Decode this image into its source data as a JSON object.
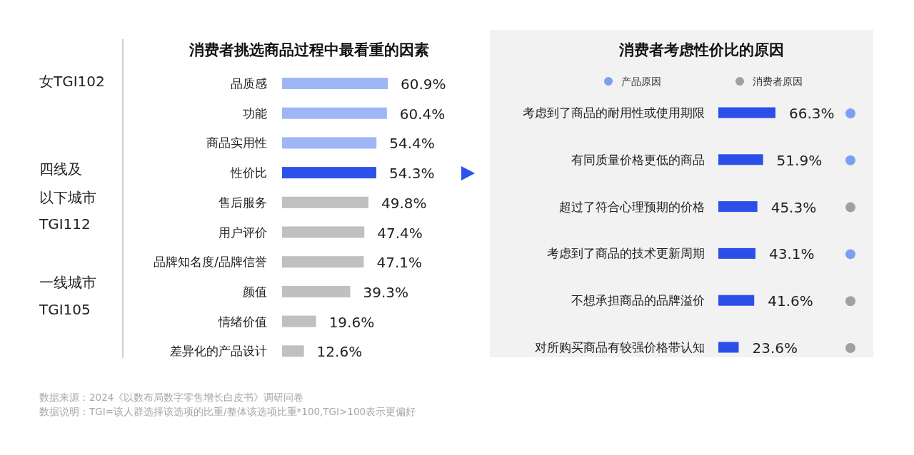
{
  "chart_data": [
    {
      "type": "bar",
      "orientation": "horizontal",
      "title": "消费者挑选商品过程中最看重的因素",
      "categories": [
        "品质感",
        "功能",
        "商品实用性",
        "性价比",
        "售后服务",
        "用户评价",
        "品牌知名度/品牌信誉",
        "颜值",
        "情绪价值",
        "差异化的产品设计"
      ],
      "values": [
        60.9,
        60.4,
        54.4,
        54.3,
        49.8,
        47.4,
        47.1,
        39.3,
        19.6,
        12.6
      ],
      "value_labels": [
        "60.9%",
        "60.4%",
        "54.4%",
        "54.3%",
        "49.8%",
        "47.4%",
        "47.1%",
        "39.3%",
        "19.6%",
        "12.6%"
      ],
      "colors": [
        "#9fb6f6",
        "#9fb6f6",
        "#9fb6f6",
        "#2b52ea",
        "#c0c0c0",
        "#c0c0c0",
        "#c0c0c0",
        "#c0c0c0",
        "#c0c0c0",
        "#c0c0c0"
      ],
      "annotations": [
        "女TGI102",
        "四线及",
        "以下城市",
        "TGI112",
        "一线城市",
        "TGI105",
        "数据来源：2024《以数布局数字零售增长白皮书》调研问卷",
        "数据说明：TGI=该人群选择该选项的比重/整体该选项比重*100,TGI>100表示更偏好"
      ]
    },
    {
      "type": "bar",
      "orientation": "horizontal",
      "title": "消费者考虑性价比的原因",
      "color": "#2b4fe8",
      "categories": [
        "考虑到了商品的耐用性或使用期限",
        "有同质量价格更低的商品",
        "超过了符合心理预期的价格",
        "考虑到了商品的技术更新周期",
        "不想承担商品的品牌溢价",
        "对所购买商品有较强价格带认知"
      ],
      "values": [
        66.3,
        51.9,
        45.3,
        43.1,
        41.6,
        23.6
      ],
      "value_labels": [
        "66.3%",
        "51.9%",
        "45.3%",
        "43.1%",
        "41.6%",
        "23.6%"
      ],
      "annotations": [
        "产品原因",
        "消费者原因"
      ]
    }
  ]
}
